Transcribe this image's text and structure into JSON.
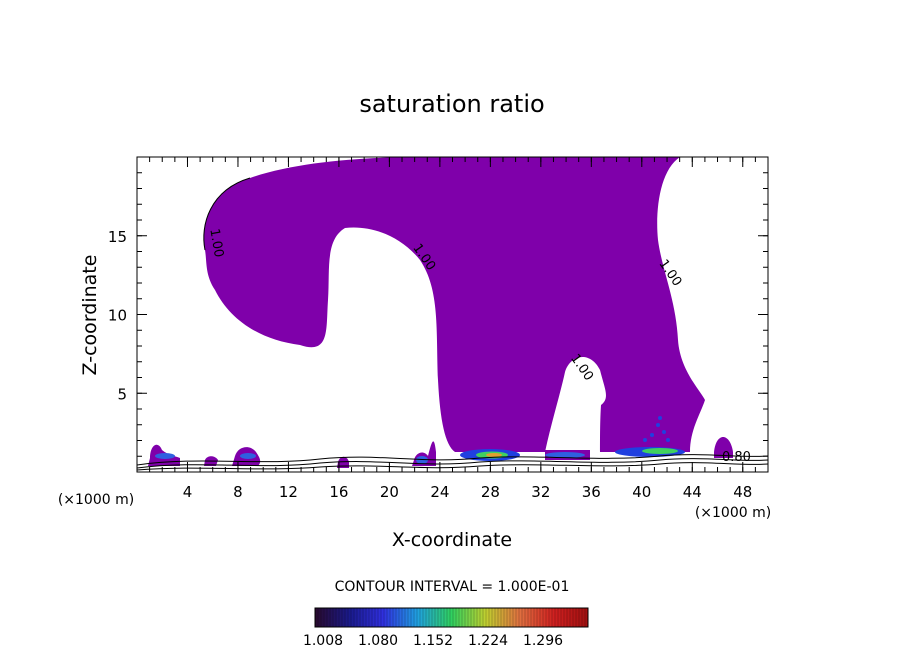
{
  "chart_data": {
    "type": "contour",
    "title": "saturation ratio",
    "xlabel": "X-coordinate",
    "ylabel": "Z-coordinate",
    "x_unit_left": "(×1000 m)",
    "x_unit_right": "(×1000 m)",
    "xlim": [
      0,
      50
    ],
    "ylim": [
      0,
      20
    ],
    "x_ticks": [
      4,
      8,
      12,
      16,
      20,
      24,
      28,
      32,
      36,
      40,
      44,
      48
    ],
    "y_ticks": [
      5,
      10,
      15
    ],
    "contour_labels": [
      {
        "text": "1.00",
        "x": 6.0,
        "z": 14.5
      },
      {
        "text": "1.00",
        "x": 22.5,
        "z": 13.5
      },
      {
        "text": "1.00",
        "x": 42.0,
        "z": 12.5
      },
      {
        "text": "1.00",
        "x": 35.0,
        "z": 6.5
      },
      {
        "text": "0.80",
        "x": 47.5,
        "z": 0.7
      }
    ],
    "contour_interval_label": "CONTOUR INTERVAL = 1.000E-01",
    "colorbar": {
      "tick_labels": [
        "1.008",
        "1.080",
        "1.152",
        "1.224",
        "1.296"
      ],
      "colors": [
        "#2a0a2e",
        "#1a1a8a",
        "#3030e0",
        "#20a0e0",
        "#30d060",
        "#c0d030",
        "#e07040",
        "#d02020",
        "#a01010"
      ]
    },
    "fill_color": "#7f00aa"
  }
}
